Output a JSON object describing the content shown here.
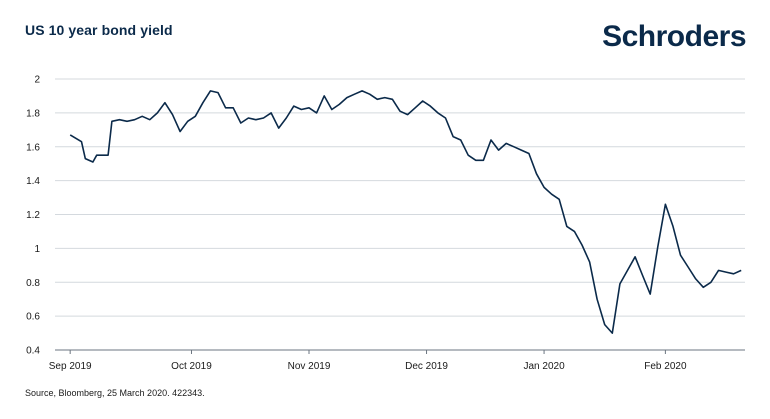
{
  "header": {
    "title": "US 10 year bond yield",
    "brand": "Schroders"
  },
  "footer": {
    "source": "Source, Bloomberg, 25 March 2020. 422343."
  },
  "colors": {
    "series": "#0b2a4a",
    "grid": "#d4d9de",
    "brand": "#0b2a4a"
  },
  "chart_data": {
    "type": "line",
    "title": "US 10 year bond yield",
    "xlabel": "",
    "ylabel": "",
    "ylim": [
      0.4,
      2.0
    ],
    "yticks": [
      "0.4",
      "0.6",
      "0.8",
      "1",
      "1.2",
      "1.4",
      "1.6",
      "1.8",
      "2"
    ],
    "xticks": [
      {
        "label": "Sep 2019",
        "date": "2019-08-30"
      },
      {
        "label": "Oct 2019",
        "date": "2019-10-01"
      },
      {
        "label": "Nov 2019",
        "date": "2019-11-01"
      },
      {
        "label": "Dec 2019",
        "date": "2019-12-02"
      },
      {
        "label": "Jan 2020",
        "date": "2020-01-02"
      },
      {
        "label": "Feb 2020",
        "date": "2020-02-03"
      }
    ],
    "grid": true,
    "legend": "none",
    "series": [
      {
        "x": [
          "2019-08-30",
          "2019-09-02",
          "2019-09-03",
          "2019-09-05",
          "2019-09-06",
          "2019-09-09",
          "2019-09-10",
          "2019-09-12",
          "2019-09-14",
          "2019-09-16",
          "2019-09-18",
          "2019-09-20",
          "2019-09-22",
          "2019-09-24",
          "2019-09-26",
          "2019-09-28",
          "2019-09-30",
          "2019-10-02",
          "2019-10-04",
          "2019-10-06",
          "2019-10-08",
          "2019-10-10",
          "2019-10-12",
          "2019-10-14",
          "2019-10-16",
          "2019-10-18",
          "2019-10-20",
          "2019-10-22",
          "2019-10-24",
          "2019-10-26",
          "2019-10-28",
          "2019-10-30",
          "2019-11-01",
          "2019-11-03",
          "2019-11-05",
          "2019-11-07",
          "2019-11-09",
          "2019-11-11",
          "2019-11-13",
          "2019-11-15",
          "2019-11-17",
          "2019-11-19",
          "2019-11-21",
          "2019-11-23",
          "2019-11-25",
          "2019-11-27",
          "2019-11-29",
          "2019-12-01",
          "2019-12-03",
          "2019-12-05",
          "2019-12-07",
          "2019-12-09",
          "2019-12-11",
          "2019-12-13",
          "2019-12-15",
          "2019-12-17",
          "2019-12-19",
          "2019-12-21",
          "2019-12-23",
          "2019-12-25",
          "2019-12-27",
          "2019-12-29",
          "2019-12-31",
          "2020-01-02",
          "2020-01-04",
          "2020-01-06",
          "2020-01-08",
          "2020-01-10",
          "2020-01-12",
          "2020-01-14",
          "2020-01-16",
          "2020-01-18",
          "2020-01-20",
          "2020-01-22",
          "2020-01-24",
          "2020-01-26",
          "2020-01-28",
          "2020-01-30",
          "2020-02-01",
          "2020-02-03",
          "2020-02-05",
          "2020-02-07",
          "2020-02-09",
          "2020-02-11",
          "2020-02-13",
          "2020-02-15",
          "2020-02-17",
          "2020-02-19",
          "2020-02-21",
          "2020-02-23"
        ],
        "y": [
          1.67,
          1.63,
          1.53,
          1.51,
          1.55,
          1.55,
          1.75,
          1.76,
          1.75,
          1.76,
          1.78,
          1.76,
          1.8,
          1.86,
          1.79,
          1.69,
          1.75,
          1.78,
          1.86,
          1.93,
          1.92,
          1.83,
          1.83,
          1.74,
          1.77,
          1.76,
          1.77,
          1.8,
          1.71,
          1.77,
          1.84,
          1.82,
          1.83,
          1.8,
          1.9,
          1.82,
          1.85,
          1.89,
          1.91,
          1.93,
          1.91,
          1.88,
          1.89,
          1.88,
          1.81,
          1.79,
          1.83,
          1.87,
          1.84,
          1.8,
          1.77,
          1.66,
          1.64,
          1.55,
          1.52,
          1.52,
          1.64,
          1.58,
          1.62,
          1.6,
          1.58,
          1.56,
          1.44,
          1.36,
          1.32,
          1.29,
          1.13,
          1.1,
          1.02,
          0.92,
          0.7,
          0.55,
          0.5,
          0.79,
          0.87,
          0.95,
          0.84,
          0.73,
          1.01,
          1.26,
          1.13,
          0.96,
          0.89,
          0.82,
          0.77,
          0.8,
          0.87,
          0.86,
          0.85,
          0.87
        ]
      }
    ]
  }
}
